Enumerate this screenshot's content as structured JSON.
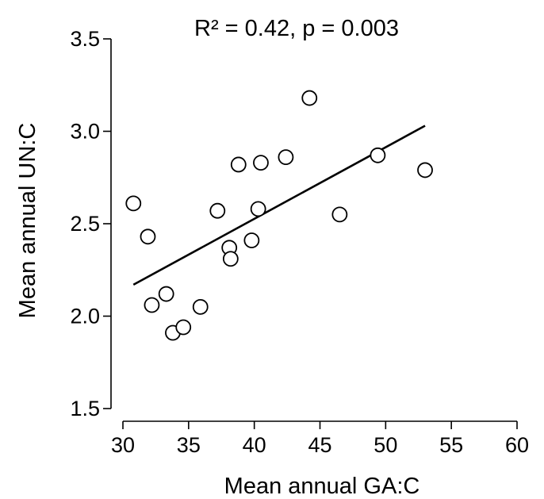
{
  "chart_data": {
    "type": "scatter",
    "title": "R² = 0.42, p = 0.003",
    "xlabel": "Mean annual GA:C",
    "ylabel": "Mean annual UN:C",
    "xlim": [
      30,
      60
    ],
    "ylim": [
      1.5,
      3.5
    ],
    "xticks": [
      30,
      35,
      40,
      45,
      50,
      55,
      60
    ],
    "yticks": [
      1.5,
      2.0,
      2.5,
      3.0,
      3.5
    ],
    "xtick_labels": [
      "30",
      "35",
      "40",
      "45",
      "50",
      "55",
      "60"
    ],
    "ytick_labels": [
      "1.5",
      "2.0",
      "2.5",
      "3.0",
      "3.5"
    ],
    "grid": false,
    "marker": "open-circle",
    "points": [
      {
        "x": 30.8,
        "y": 2.61
      },
      {
        "x": 31.9,
        "y": 2.43
      },
      {
        "x": 32.2,
        "y": 2.06
      },
      {
        "x": 33.3,
        "y": 2.12
      },
      {
        "x": 33.8,
        "y": 1.91
      },
      {
        "x": 34.6,
        "y": 1.94
      },
      {
        "x": 35.9,
        "y": 2.05
      },
      {
        "x": 37.2,
        "y": 2.57
      },
      {
        "x": 38.1,
        "y": 2.37
      },
      {
        "x": 38.2,
        "y": 2.31
      },
      {
        "x": 38.8,
        "y": 2.82
      },
      {
        "x": 39.8,
        "y": 2.41
      },
      {
        "x": 40.3,
        "y": 2.58
      },
      {
        "x": 40.5,
        "y": 2.83
      },
      {
        "x": 42.4,
        "y": 2.86
      },
      {
        "x": 44.2,
        "y": 3.18
      },
      {
        "x": 46.5,
        "y": 2.55
      },
      {
        "x": 49.4,
        "y": 2.87
      },
      {
        "x": 53.0,
        "y": 2.79
      }
    ],
    "fit_line": {
      "x": [
        30.8,
        53.0
      ],
      "y": [
        2.17,
        3.03
      ]
    }
  }
}
